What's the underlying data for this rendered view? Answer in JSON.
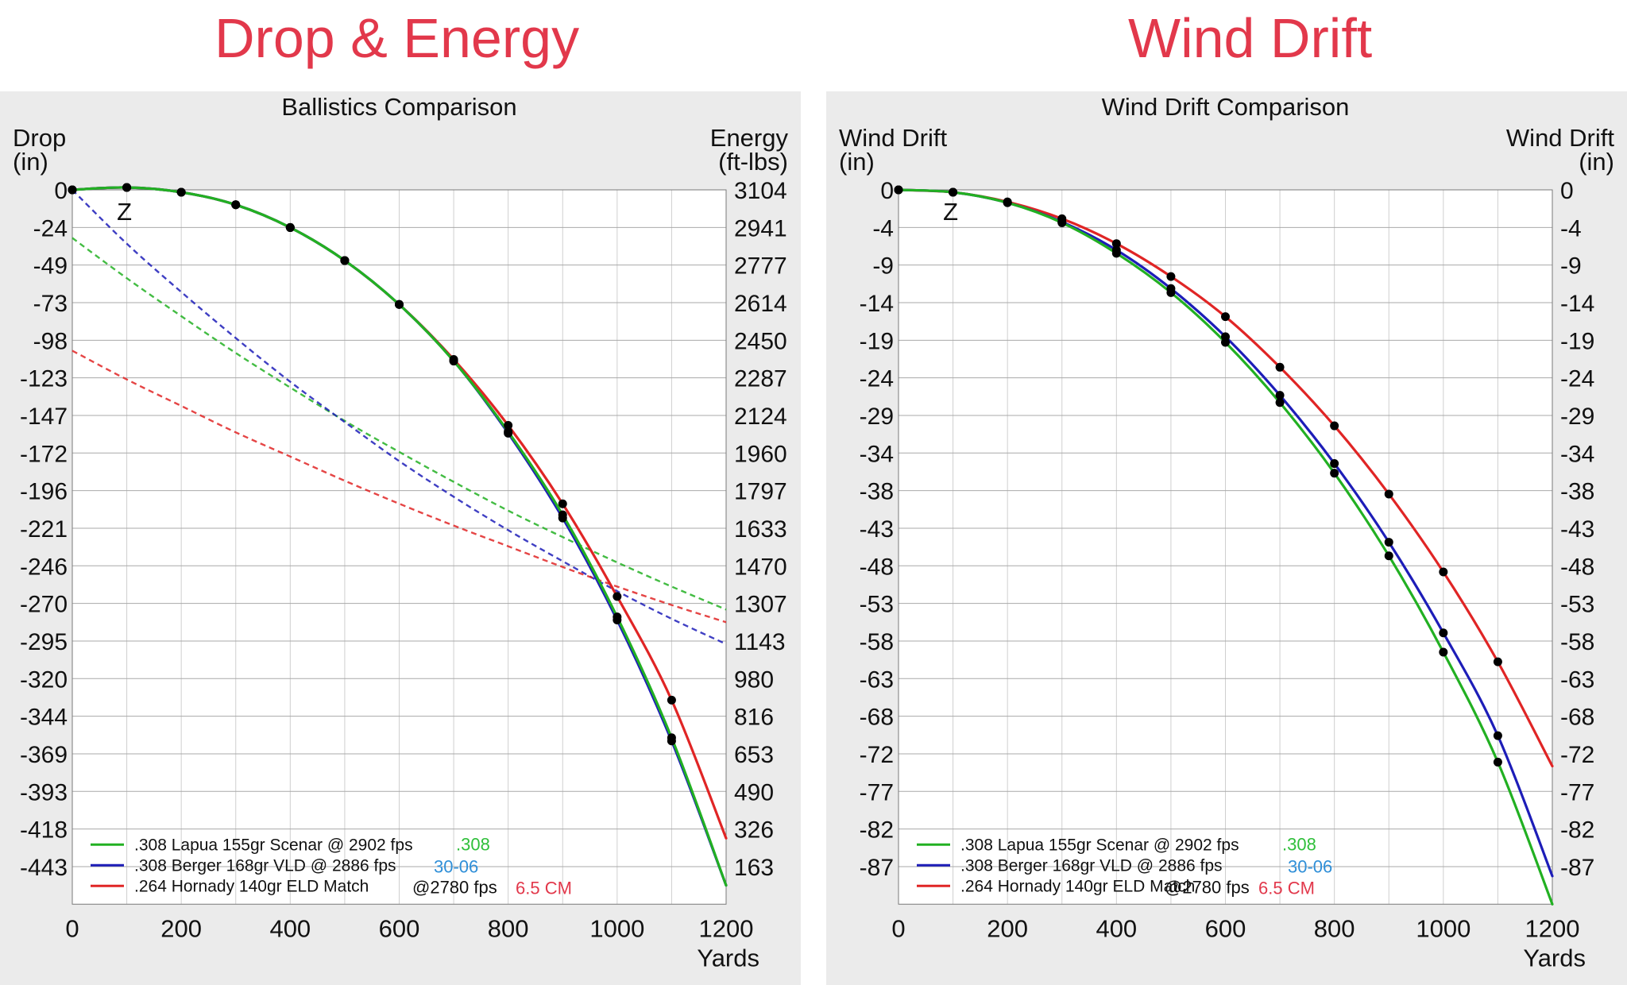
{
  "headings": {
    "left": "Drop & Energy",
    "right": "Wind Drift"
  },
  "colors": {
    "heading": "#e2384b",
    "green": "#22b022",
    "blue": "#1d1db8",
    "red": "#e02525",
    "label308": "#2fbf3a",
    "label3006": "#2f8fd8",
    "label65": "#e2384b"
  },
  "chart_data": [
    {
      "type": "line",
      "title": "Ballistics Comparison",
      "ylabel_left": [
        "Drop",
        "(in)"
      ],
      "ylabel_right": [
        "Energy",
        "(ft-lbs)"
      ],
      "xlabel": "Yards",
      "zero_marker": "Z",
      "xlim": [
        0,
        1200
      ],
      "ylim": [
        -455,
        0
      ],
      "x_ticks": [
        "0",
        "200",
        "400",
        "600",
        "800",
        "1000",
        "1200"
      ],
      "y_ticks_left": [
        "0",
        "-24",
        "-49",
        "-73",
        "-98",
        "-123",
        "-147",
        "-172",
        "-196",
        "-221",
        "-246",
        "-270",
        "-295",
        "-320",
        "-344",
        "-369",
        "-393",
        "-418",
        "-443"
      ],
      "y_ticks_right": [
        "3104",
        "2941",
        "2777",
        "2614",
        "2450",
        "2287",
        "2124",
        "1960",
        "1797",
        "1633",
        "1470",
        "1307",
        "1143",
        "980",
        "816",
        "653",
        "490",
        "326",
        "163"
      ],
      "x": [
        0,
        100,
        200,
        300,
        400,
        500,
        600,
        700,
        800,
        900,
        1000,
        1100,
        1200
      ],
      "series": [
        {
          "name": "308",
          "color": "green",
          "legend": ".308 Lapua 155gr Scenar @ 2902 fps",
          "tag": ".308",
          "drop": [
            0,
            1.5,
            -1.5,
            -9.5,
            -24,
            -45,
            -73,
            -109,
            -154,
            -207,
            -272,
            -349,
            -443
          ]
        },
        {
          "name": "3006",
          "color": "blue",
          "legend": ".308 Berger 168gr VLD @ 2886 fps",
          "tag": "30-06",
          "drop": [
            0,
            1.5,
            -1.5,
            -9.5,
            -24,
            -45,
            -73,
            -109,
            -155,
            -209,
            -274,
            -351,
            -443
          ]
        },
        {
          "name": "65cm",
          "color": "red",
          "legend": ".264 Hornady 140gr ELD Match",
          "fps": "@2780 fps",
          "tag": "6.5 CM",
          "drop": [
            0,
            1.5,
            -1.5,
            -9.5,
            -24,
            -45,
            -73,
            -108,
            -150,
            -200,
            -259,
            -325,
            -413
          ]
        }
      ],
      "energy_series": [
        {
          "name": "308",
          "color": "green",
          "energy": [
            2895,
            2720,
            2555,
            2395,
            2245,
            2100,
            1965,
            1835,
            1710,
            1595,
            1485,
            1380,
            1280
          ]
        },
        {
          "name": "3006",
          "color": "blue",
          "energy": [
            3104,
            2870,
            2660,
            2460,
            2270,
            2095,
            1925,
            1770,
            1625,
            1490,
            1360,
            1240,
            1130
          ]
        },
        {
          "name": "65cm",
          "color": "red",
          "energy": [
            2405,
            2280,
            2165,
            2050,
            1945,
            1840,
            1740,
            1645,
            1555,
            1465,
            1380,
            1300,
            1225
          ]
        }
      ]
    },
    {
      "type": "line",
      "title": "Wind Drift Comparison",
      "ylabel_left": [
        "Wind Drift",
        "(in)"
      ],
      "ylabel_right": [
        "Wind Drift",
        "(in)"
      ],
      "xlabel": "Yards",
      "zero_marker": "Z",
      "xlim": [
        0,
        1200
      ],
      "ylim": [
        -89,
        0
      ],
      "x_ticks": [
        "0",
        "200",
        "400",
        "600",
        "800",
        "1000",
        "1200"
      ],
      "y_ticks": [
        "0",
        "-4",
        "-9",
        "-14",
        "-19",
        "-24",
        "-29",
        "-34",
        "-38",
        "-43",
        "-48",
        "-53",
        "-58",
        "-63",
        "-68",
        "-72",
        "-77",
        "-82",
        "-87"
      ],
      "x": [
        0,
        100,
        200,
        300,
        400,
        500,
        600,
        700,
        800,
        900,
        1000,
        1100,
        1200
      ],
      "series": [
        {
          "name": "308",
          "color": "green",
          "legend": ".308 Lapua 155gr Scenar @ 2902 fps",
          "tag": ".308",
          "drift": [
            0,
            -0.3,
            -1.6,
            -4.1,
            -7.9,
            -12.8,
            -19.0,
            -26.5,
            -35.3,
            -45.6,
            -57.6,
            -71.3,
            -89.0
          ]
        },
        {
          "name": "3006",
          "color": "blue",
          "legend": ".308 Berger 168gr VLD @ 2886 fps",
          "tag": "30-06",
          "drift": [
            0,
            -0.3,
            -1.6,
            -4.0,
            -7.5,
            -12.3,
            -18.3,
            -25.6,
            -34.1,
            -43.9,
            -55.2,
            -68.0,
            -85.5
          ]
        },
        {
          "name": "65cm",
          "color": "red",
          "legend": ".264 Hornady 140gr ELD Match",
          "fps": "@2780 fps",
          "tag": "6.5 CM",
          "drift": [
            0,
            -0.3,
            -1.5,
            -3.6,
            -6.7,
            -10.8,
            -15.8,
            -22.1,
            -29.4,
            -37.9,
            -47.6,
            -58.8,
            -71.8
          ]
        }
      ]
    }
  ]
}
